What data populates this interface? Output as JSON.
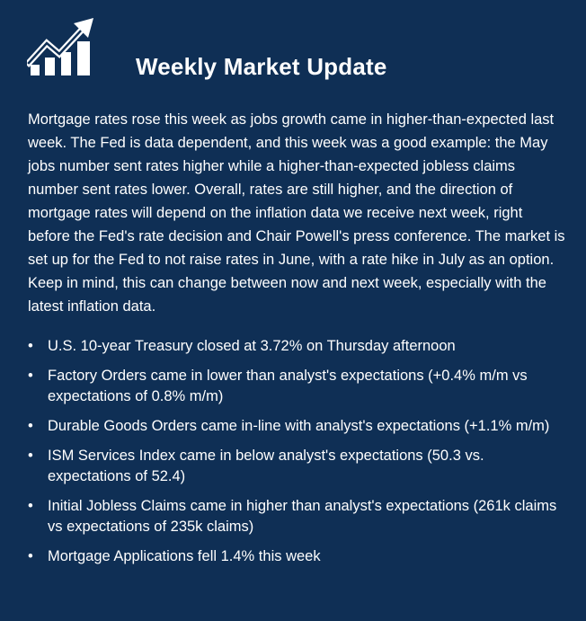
{
  "title": "Weekly Market Update",
  "logo_icon": "trend-up-bar-chart-icon",
  "intro": "Mortgage rates rose this week as jobs growth came in higher-than-expected last week. The Fed is data dependent, and this week was a good example: the May jobs number sent rates higher while a higher-than-expected jobless claims number sent rates lower. Overall, rates are still higher, and the direction of mortgage rates will depend on the inflation data we receive next week, right before the Fed's rate decision and Chair Powell's press conference. The market is set up for the Fed to not raise rates in June, with a rate hike in July as an option. Keep in mind, this can change between now and next week, especially with the latest inflation data.",
  "bullets": [
    "U.S. 10-year Treasury closed at 3.72% on Thursday afternoon",
    "Factory Orders came in lower than analyst's expectations (+0.4% m/m vs expectations of 0.8% m/m)",
    "Durable Goods Orders came in-line with analyst's expectations (+1.1% m/m)",
    "ISM Services Index came in below analyst's expectations (50.3 vs. expectations of 52.4)",
    "Initial Jobless Claims came in higher than analyst's expectations (261k claims vs expectations of 235k claims)",
    "Mortgage Applications fell 1.4% this week"
  ],
  "colors": {
    "background": "#0f2f55",
    "text": "#ffffff"
  }
}
